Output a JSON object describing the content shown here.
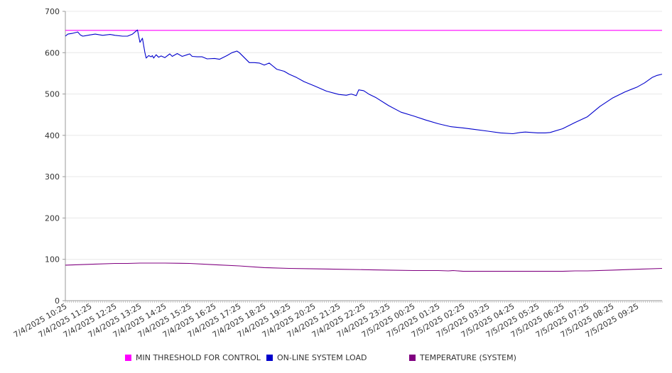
{
  "chart_data": {
    "type": "line",
    "title": "",
    "xlabel": "",
    "ylabel": "",
    "ylim": [
      0,
      700
    ],
    "y_ticks": [
      0,
      100,
      200,
      300,
      400,
      500,
      600,
      700
    ],
    "x_tick_labels": [
      "7/4/2025 10:25",
      "7/4/2025 11:25",
      "7/4/2025 12:25",
      "7/4/2025 13:25",
      "7/4/2025 14:25",
      "7/4/2025 15:25",
      "7/4/2025 16:25",
      "7/4/2025 17:25",
      "7/4/2025 18:25",
      "7/4/2025 19:25",
      "7/4/2025 20:25",
      "7/4/2025 21:25",
      "7/4/2025 22:25",
      "7/4/2025 23:25",
      "7/5/2025 00:25",
      "7/5/2025 01:25",
      "7/5/2025 02:25",
      "7/5/2025 03:25",
      "7/5/2025 04:25",
      "7/5/2025 05:25",
      "7/5/2025 06:25",
      "7/5/2025 07:25",
      "7/5/2025 08:25",
      "7/5/2025 09:25"
    ],
    "x_range_hours": [
      0,
      24
    ],
    "grid": true,
    "legend_position": "bottom",
    "series": [
      {
        "name": "MIN THRESHOLD FOR CONTROL",
        "color": "#ff00ff",
        "x": [
          0,
          24
        ],
        "y": [
          654,
          654
        ]
      },
      {
        "name": "ON-LINE SYSTEM LOAD",
        "color": "#0000cc",
        "x": [
          0,
          0.1,
          0.3,
          0.5,
          0.6,
          0.7,
          0.8,
          1.0,
          1.2,
          1.5,
          1.8,
          2.0,
          2.3,
          2.5,
          2.7,
          2.9,
          3.0,
          3.1,
          3.2,
          3.25,
          3.35,
          3.45,
          3.5,
          3.55,
          3.65,
          3.75,
          3.85,
          4.0,
          4.2,
          4.3,
          4.5,
          4.7,
          4.9,
          5.0,
          5.1,
          5.3,
          5.5,
          5.7,
          6.0,
          6.2,
          6.5,
          6.7,
          6.9,
          7.0,
          7.2,
          7.4,
          7.6,
          7.8,
          8.0,
          8.2,
          8.5,
          8.8,
          9.0,
          9.3,
          9.6,
          10.0,
          10.5,
          11.0,
          11.3,
          11.5,
          11.7,
          11.8,
          12.0,
          12.2,
          12.5,
          13.0,
          13.5,
          14.0,
          14.5,
          15.0,
          15.5,
          16.0,
          16.5,
          17.0,
          17.5,
          18.0,
          18.3,
          18.5,
          19.0,
          19.3,
          19.5,
          20.0,
          20.5,
          21.0,
          21.5,
          22.0,
          22.5,
          23.0,
          23.3,
          23.6,
          23.8,
          24.0
        ],
        "y": [
          640,
          645,
          647,
          650,
          643,
          640,
          641,
          643,
          645,
          642,
          644,
          642,
          640,
          640,
          645,
          655,
          625,
          635,
          600,
          587,
          593,
          590,
          593,
          587,
          595,
          589,
          592,
          588,
          597,
          591,
          598,
          591,
          595,
          597,
          591,
          590,
          590,
          585,
          586,
          584,
          593,
          600,
          604,
          600,
          588,
          576,
          576,
          575,
          570,
          575,
          560,
          555,
          548,
          540,
          530,
          520,
          507,
          499,
          497,
          500,
          496,
          510,
          508,
          500,
          491,
          472,
          456,
          447,
          437,
          428,
          421,
          418,
          414,
          410,
          406,
          404,
          407,
          408,
          406,
          406,
          407,
          416,
          431,
          445,
          470,
          490,
          505,
          517,
          527,
          540,
          545,
          548
        ]
      },
      {
        "name": "TEMPERATURE (SYSTEM)",
        "color": "#800080",
        "x": [
          0,
          1,
          2,
          2.5,
          3,
          4,
          5,
          6,
          7,
          8,
          9,
          10,
          11,
          12,
          13,
          14,
          15,
          15.4,
          15.6,
          16,
          17,
          18,
          19,
          20,
          20.5,
          21,
          22,
          23,
          24
        ],
        "y": [
          86,
          88,
          90,
          90,
          91,
          91,
          90,
          87,
          84,
          80,
          78,
          77,
          76,
          75,
          74,
          73,
          73,
          72,
          73,
          71,
          71,
          71,
          71,
          71,
          72,
          72,
          74,
          76,
          78
        ]
      }
    ]
  }
}
